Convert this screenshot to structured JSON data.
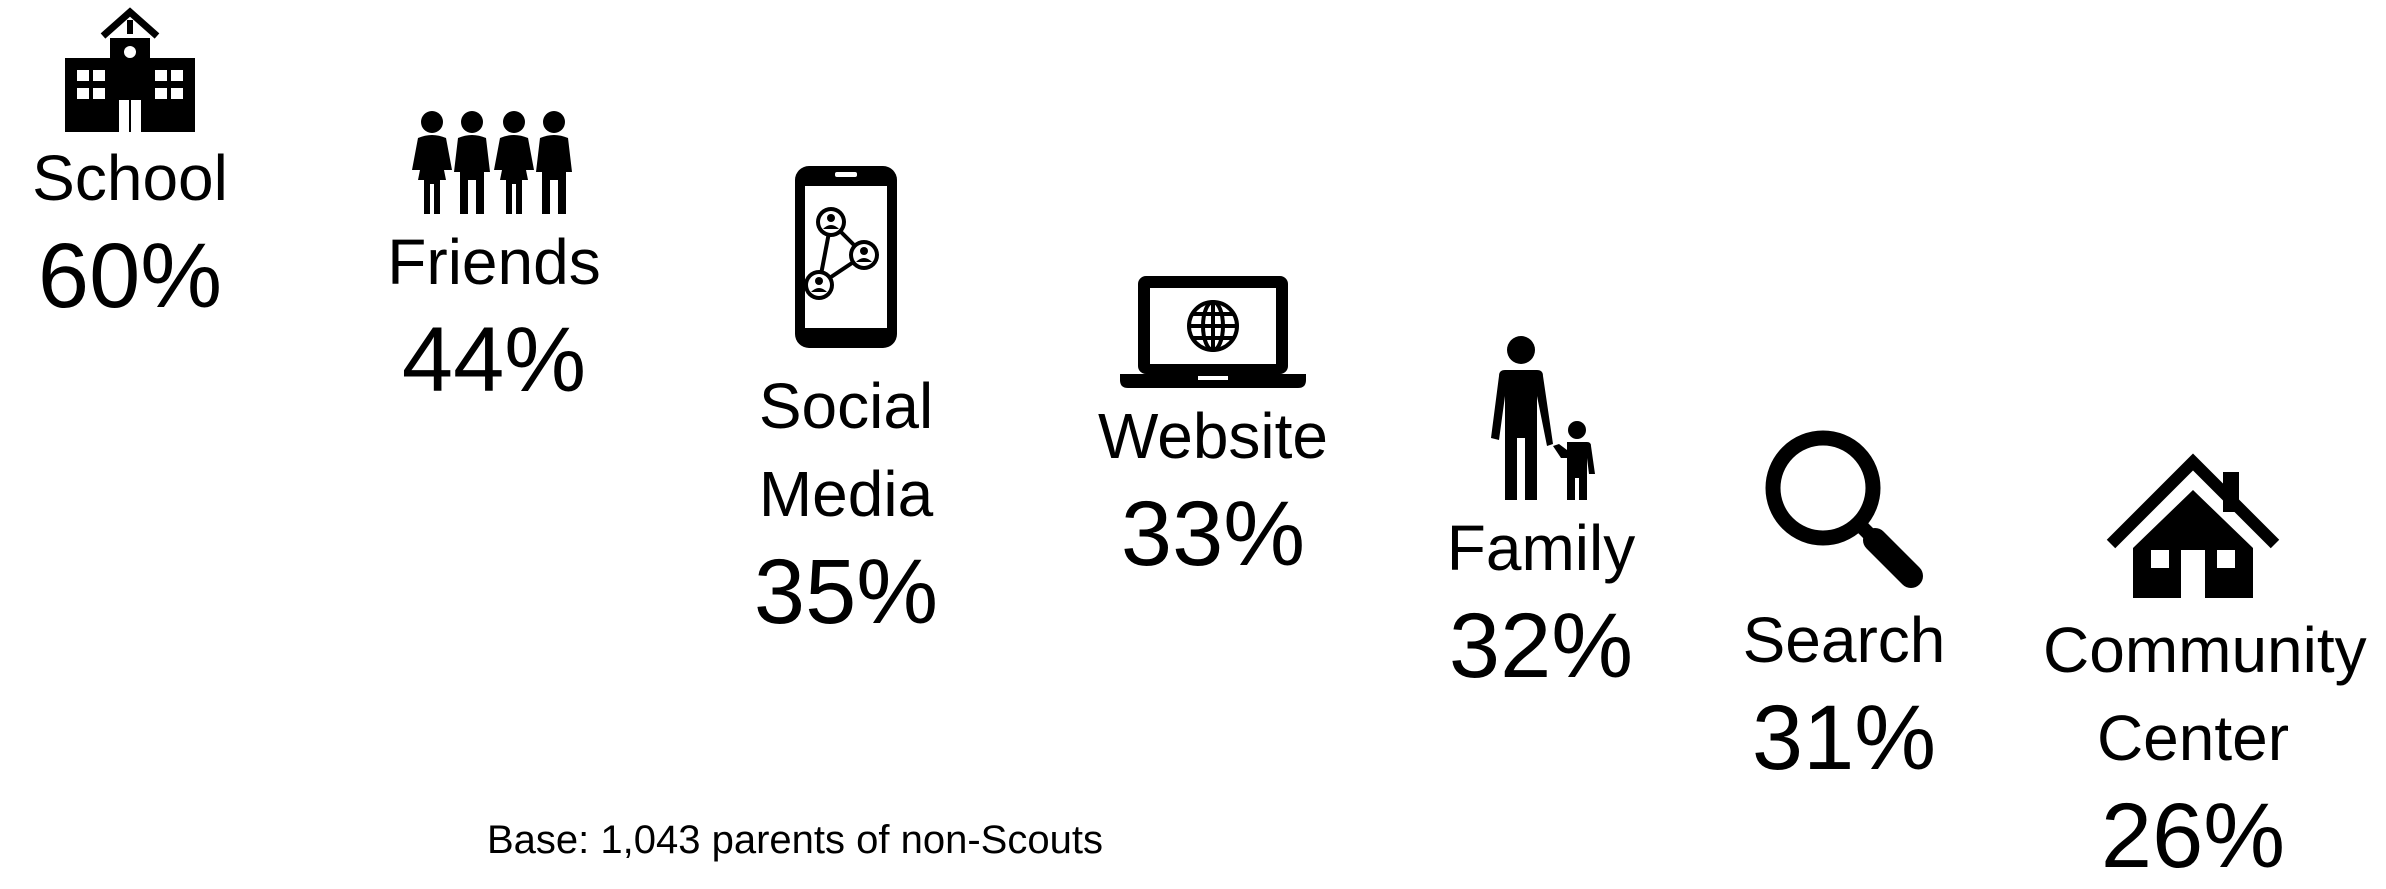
{
  "chart_data": {
    "type": "icon-infographic",
    "categories": [
      "School",
      "Friends",
      "Social Media",
      "Website",
      "Family",
      "Search",
      "Community Center"
    ],
    "values": [
      60,
      44,
      35,
      33,
      32,
      31,
      26
    ],
    "unit": "%",
    "items": [
      {
        "label": "School",
        "value": "60%",
        "icon": "school-building-icon"
      },
      {
        "label": "Friends",
        "value": "44%",
        "icon": "group-of-people-icon"
      },
      {
        "label_lines": [
          "Social",
          "Media"
        ],
        "value": "35%",
        "icon": "smartphone-social-network-icon"
      },
      {
        "label": "Website",
        "value": "33%",
        "icon": "laptop-globe-icon"
      },
      {
        "label": "Family",
        "value": "32%",
        "icon": "parent-and-child-icon"
      },
      {
        "label": "Search",
        "value": "31%",
        "icon": "magnifying-glass-icon"
      },
      {
        "label_lines": [
          "Community",
          "Center"
        ],
        "value": "26%",
        "icon": "house-icon"
      }
    ]
  },
  "footnote": "Base: 1,043 parents of non-Scouts",
  "colors": {
    "foreground": "#000000",
    "background": "#ffffff"
  }
}
